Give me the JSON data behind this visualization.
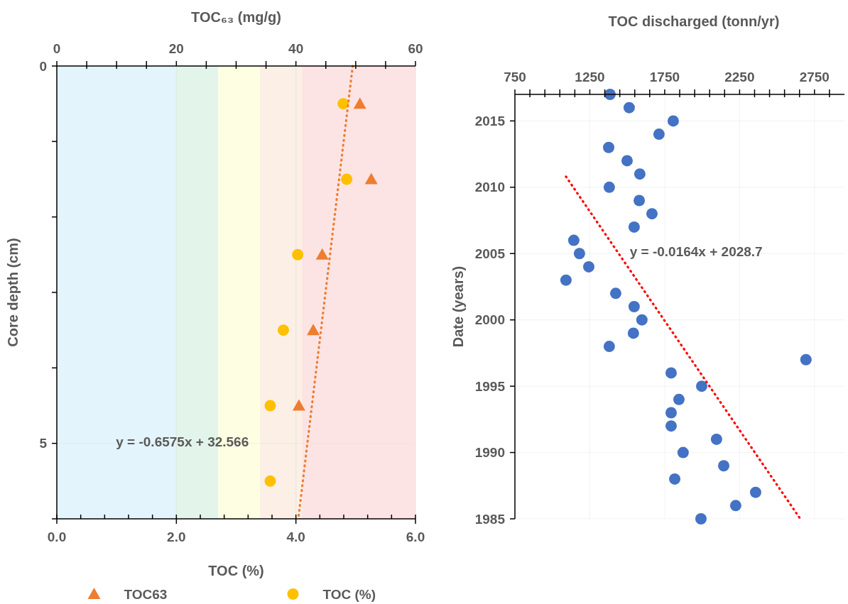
{
  "chart_data": [
    {
      "type": "scatter",
      "xlabel": "TOC (%)",
      "x2label": "TOC₆₃ (mg/g)",
      "ylabel": "Core depth (cm)",
      "xlim": [
        0,
        6
      ],
      "xticks": [
        {
          "value": 0,
          "label": "0.0"
        },
        {
          "value": 0.4,
          "label": null
        },
        {
          "value": 0.8,
          "label": null
        },
        {
          "value": 1.2,
          "label": null
        },
        {
          "value": 1.6,
          "label": null
        },
        {
          "value": 2,
          "label": "2.0"
        },
        {
          "value": 2.4,
          "label": null
        },
        {
          "value": 2.8,
          "label": null
        },
        {
          "value": 3.2,
          "label": null
        },
        {
          "value": 3.6,
          "label": null
        },
        {
          "value": 4,
          "label": "4.0"
        },
        {
          "value": 4.4,
          "label": null
        },
        {
          "value": 4.8,
          "label": null
        },
        {
          "value": 5.2,
          "label": null
        },
        {
          "value": 5.6,
          "label": null
        },
        {
          "value": 6,
          "label": "6.0"
        }
      ],
      "x2lim": [
        0,
        60
      ],
      "x2ticks": [
        0,
        {
          "value": 5,
          "label": null
        },
        {
          "value": 10,
          "label": null
        },
        {
          "value": 15,
          "label": null
        },
        20,
        {
          "value": 25,
          "label": null
        },
        {
          "value": 30,
          "label": null
        },
        {
          "value": 35,
          "label": null
        },
        40,
        {
          "value": 45,
          "label": null
        },
        {
          "value": 50,
          "label": null
        },
        {
          "value": 55,
          "label": null
        },
        60
      ],
      "ylim": [
        6,
        0
      ],
      "yticks": [
        0,
        {
          "value": 1,
          "label": null
        },
        {
          "value": 2,
          "label": null
        },
        {
          "value": 3,
          "label": null
        },
        {
          "value": 4,
          "label": null
        },
        5,
        {
          "value": 6,
          "label": null
        }
      ],
      "grid": true,
      "legend": "bottom",
      "bands": [
        {
          "axis": "x",
          "from": 0,
          "to": 2.0,
          "color": "#e3f4fc"
        },
        {
          "axis": "x",
          "from": 2.0,
          "to": 2.7,
          "color": "#e3f5ea"
        },
        {
          "axis": "x",
          "from": 2.7,
          "to": 3.4,
          "color": "#fefee3"
        },
        {
          "axis": "x",
          "from": 3.4,
          "to": 4.1,
          "color": "#fcf0e6"
        },
        {
          "axis": "x",
          "from": 4.1,
          "to": 6.0,
          "color": "#fde4e4"
        }
      ],
      "series": [
        {
          "name": "TOC63",
          "type": "scatter",
          "axis": "x2",
          "marker": "triangle",
          "color": "#ed7d31",
          "x": [
            50.7,
            52.6,
            44.4,
            42.9,
            40.5
          ],
          "values": [
            0.5,
            1.5,
            2.5,
            3.5,
            4.5
          ]
        },
        {
          "name": "TOC (%)",
          "marker": "circle",
          "color": "#ffc000",
          "x": [
            4.79,
            4.85,
            4.03,
            3.79,
            3.57,
            3.57
          ],
          "values": [
            0.5,
            1.5,
            2.5,
            3.5,
            4.5,
            5.5
          ]
        },
        {
          "type": "line",
          "axis": "x2",
          "marker": "none",
          "line_style": "dotted",
          "color": "#ed7d31",
          "x": [
            49.5,
            40.4
          ],
          "values": [
            0,
            6
          ]
        }
      ],
      "annotations": [
        "y = -0.6575x + 32.566"
      ]
    },
    {
      "type": "scatter",
      "xlabel": "TOC discharged (tonn/yr)",
      "ylabel": "Date (years)",
      "xlim": [
        750,
        2950
      ],
      "xticks": [
        750,
        {
          "value": 850,
          "label": null
        },
        {
          "value": 950,
          "label": null
        },
        {
          "value": 1050,
          "label": null
        },
        {
          "value": 1150,
          "label": null
        },
        1250,
        {
          "value": 1350,
          "label": null
        },
        {
          "value": 1450,
          "label": null
        },
        {
          "value": 1550,
          "label": null
        },
        {
          "value": 1650,
          "label": null
        },
        1750,
        {
          "value": 1850,
          "label": null
        },
        {
          "value": 1950,
          "label": null
        },
        {
          "value": 2050,
          "label": null
        },
        {
          "value": 2150,
          "label": null
        },
        2250,
        {
          "value": 2350,
          "label": null
        },
        {
          "value": 2450,
          "label": null
        },
        {
          "value": 2550,
          "label": null
        },
        {
          "value": 2650,
          "label": null
        },
        2750,
        {
          "value": 2850,
          "label": null
        }
      ],
      "ylim": [
        1985,
        2017
      ],
      "yticks": [
        1985,
        1990,
        1995,
        2000,
        2005,
        2010,
        2015
      ],
      "grid": true,
      "series": [
        {
          "marker": "circle",
          "color": "#4472c4",
          "x": [
            1385,
            1513,
            1807,
            1712,
            1376,
            1499,
            1584,
            1380,
            1580,
            1665,
            1546,
            1143,
            1181,
            1243,
            1091,
            1423,
            1546,
            1598,
            1541,
            1380,
            2693,
            1793,
            1997,
            1845,
            1793,
            1793,
            2096,
            1873,
            2144,
            1817,
            2357,
            2224,
            1992
          ],
          "values": [
            2017,
            2016,
            2015,
            2014,
            2013,
            2012,
            2011,
            2010,
            2009,
            2008,
            2007,
            2006,
            2005,
            2004,
            2003,
            2002,
            2001,
            2000,
            1999,
            1998,
            1997,
            1996,
            1995,
            1994,
            1993,
            1992,
            1991,
            1990,
            1989,
            1988,
            1987,
            1986,
            1985
          ]
        },
        {
          "type": "line",
          "marker": "none",
          "line_style": "dotted",
          "color": "#ff0000",
          "x": [
            1091,
            2655
          ],
          "values": [
            2010.8,
            1985
          ]
        }
      ],
      "annotations": [
        "y = -0.0164x + 2028.7"
      ]
    }
  ]
}
